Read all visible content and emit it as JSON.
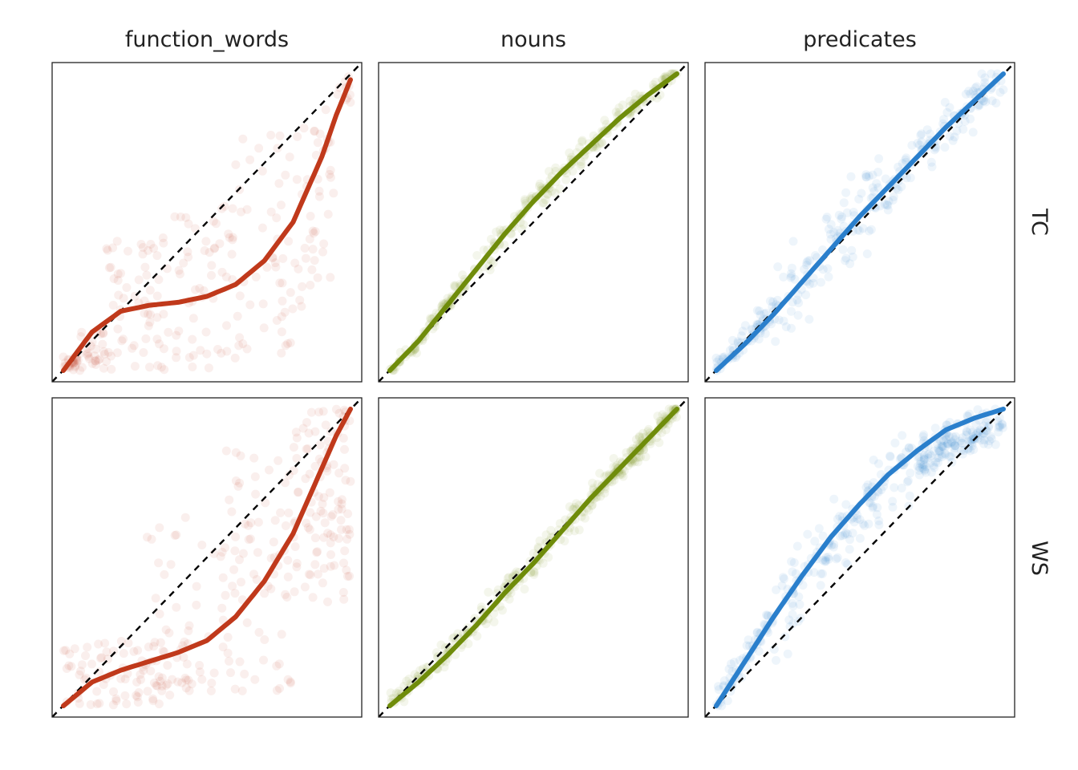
{
  "chart_data": {
    "type": "scatter",
    "layout": "facet-grid",
    "columns": [
      "function_words",
      "nouns",
      "predicates"
    ],
    "rows": [
      "TC",
      "WS"
    ],
    "xlim": [
      0,
      1
    ],
    "ylim": [
      0,
      1
    ],
    "reference_line": {
      "slope": 1,
      "intercept": 0,
      "style": "dashed",
      "color": "#000000"
    },
    "grid": false,
    "axes_ticks": false,
    "colors": {
      "function_words": "#c0391b",
      "nouns": "#6f8c0a",
      "predicates": "#2a7fcc"
    },
    "point_alpha": 0.08,
    "panels": [
      {
        "column": "function_words",
        "row": "TC",
        "fit_curve": {
          "x": [
            0,
            0.1,
            0.2,
            0.3,
            0.4,
            0.5,
            0.6,
            0.7,
            0.8,
            0.9,
            0.95,
            1.0
          ],
          "y": [
            0.0,
            0.13,
            0.2,
            0.22,
            0.23,
            0.25,
            0.29,
            0.37,
            0.5,
            0.72,
            0.86,
            0.98
          ]
        },
        "scatter_bands": [
          {
            "x": [
              0.0,
              0.05
            ],
            "y_range": [
              0.0,
              0.05
            ],
            "n": 24
          },
          {
            "x": [
              0.05,
              0.15
            ],
            "y_range": [
              0.0,
              0.14
            ],
            "n": 30
          },
          {
            "x": [
              0.15,
              0.35
            ],
            "y_range": [
              0.0,
              0.45
            ],
            "n": 60
          },
          {
            "x": [
              0.35,
              0.6
            ],
            "y_range": [
              0.0,
              0.56
            ],
            "n": 60
          },
          {
            "x": [
              0.6,
              0.8
            ],
            "y_range": [
              0.05,
              0.82
            ],
            "n": 50
          },
          {
            "x": [
              0.8,
              0.95
            ],
            "y_range": [
              0.2,
              0.9
            ],
            "n": 45
          },
          {
            "x": [
              0.95,
              1.0
            ],
            "y_range": [
              0.9,
              1.0
            ],
            "n": 10
          }
        ]
      },
      {
        "column": "nouns",
        "row": "TC",
        "fit_curve": {
          "x": [
            0,
            0.1,
            0.2,
            0.3,
            0.4,
            0.5,
            0.6,
            0.7,
            0.8,
            0.9,
            1.0
          ],
          "y": [
            0.0,
            0.1,
            0.22,
            0.34,
            0.46,
            0.57,
            0.67,
            0.76,
            0.85,
            0.93,
            1.0
          ]
        },
        "scatter_bands": [
          {
            "x": [
              0.0,
              0.2
            ],
            "y_range_offset": [
              -0.04,
              0.04
            ],
            "n": 60
          },
          {
            "x": [
              0.2,
              0.6
            ],
            "y_range_offset": [
              -0.07,
              0.07
            ],
            "n": 110
          },
          {
            "x": [
              0.6,
              1.0
            ],
            "y_range_offset": [
              -0.06,
              0.06
            ],
            "n": 110
          }
        ]
      },
      {
        "column": "predicates",
        "row": "TC",
        "fit_curve": {
          "x": [
            0,
            0.1,
            0.2,
            0.3,
            0.4,
            0.5,
            0.6,
            0.7,
            0.8,
            0.9,
            1.0
          ],
          "y": [
            0.0,
            0.09,
            0.19,
            0.3,
            0.41,
            0.52,
            0.62,
            0.72,
            0.82,
            0.91,
            1.0
          ]
        },
        "scatter_bands": [
          {
            "x": [
              0.0,
              0.2
            ],
            "y_range_offset": [
              -0.06,
              0.08
            ],
            "n": 70
          },
          {
            "x": [
              0.2,
              0.6
            ],
            "y_range_offset": [
              -0.18,
              0.2
            ],
            "n": 110
          },
          {
            "x": [
              0.6,
              1.0
            ],
            "y_range_offset": [
              -0.12,
              0.12
            ],
            "n": 110
          }
        ]
      },
      {
        "column": "function_words",
        "row": "WS",
        "fit_curve": {
          "x": [
            0,
            0.1,
            0.2,
            0.3,
            0.4,
            0.5,
            0.6,
            0.7,
            0.8,
            0.9,
            0.95,
            1.0
          ],
          "y": [
            0.0,
            0.08,
            0.12,
            0.15,
            0.18,
            0.22,
            0.3,
            0.42,
            0.58,
            0.8,
            0.91,
            1.0
          ]
        },
        "scatter_bands": [
          {
            "x": [
              0.0,
              0.45
            ],
            "y_range": [
              0.0,
              0.22
            ],
            "n": 90
          },
          {
            "x": [
              0.25,
              0.55
            ],
            "y_range": [
              0.05,
              0.65
            ],
            "n": 40
          },
          {
            "x": [
              0.55,
              0.8
            ],
            "y_range": [
              0.05,
              0.88
            ],
            "n": 80
          },
          {
            "x": [
              0.8,
              1.0
            ],
            "y_range": [
              0.35,
              1.0
            ],
            "n": 110
          }
        ]
      },
      {
        "column": "nouns",
        "row": "WS",
        "fit_curve": {
          "x": [
            0,
            0.1,
            0.2,
            0.3,
            0.4,
            0.5,
            0.6,
            0.7,
            0.8,
            0.9,
            1.0
          ],
          "y": [
            0.0,
            0.08,
            0.17,
            0.27,
            0.38,
            0.48,
            0.59,
            0.7,
            0.8,
            0.9,
            1.0
          ]
        },
        "scatter_bands": [
          {
            "x": [
              0.0,
              0.3
            ],
            "y_range_offset": [
              -0.05,
              0.07
            ],
            "n": 80
          },
          {
            "x": [
              0.3,
              0.7
            ],
            "y_range_offset": [
              -0.08,
              0.08
            ],
            "n": 110
          },
          {
            "x": [
              0.7,
              1.0
            ],
            "y_range_offset": [
              -0.06,
              0.06
            ],
            "n": 160
          }
        ]
      },
      {
        "column": "predicates",
        "row": "WS",
        "fit_curve": {
          "x": [
            0,
            0.1,
            0.2,
            0.3,
            0.4,
            0.5,
            0.6,
            0.7,
            0.8,
            0.9,
            1.0
          ],
          "y": [
            0.0,
            0.15,
            0.3,
            0.44,
            0.57,
            0.68,
            0.78,
            0.86,
            0.93,
            0.97,
            1.0
          ]
        },
        "scatter_bands": [
          {
            "x": [
              0.0,
              0.2
            ],
            "y_range_offset": [
              -0.08,
              0.1
            ],
            "n": 60
          },
          {
            "x": [
              0.2,
              0.7
            ],
            "y_range_offset": [
              -0.22,
              0.16
            ],
            "n": 150
          },
          {
            "x": [
              0.7,
              1.0
            ],
            "y_range_offset": [
              -0.16,
              0.06
            ],
            "n": 160
          }
        ]
      }
    ]
  }
}
